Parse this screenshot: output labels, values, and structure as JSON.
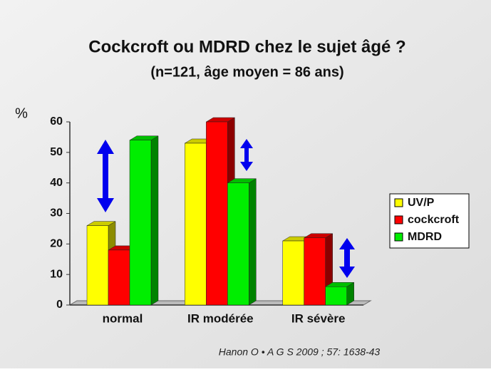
{
  "chart_data": {
    "type": "bar3d",
    "title": "Cockcroft ou MDRD chez le sujet âgé ?",
    "subtitle": "(n=121, âge moyen = 86 ans)",
    "y_label": "%",
    "source": "Hanon O • A G S  2009 ; 57: 1638-43",
    "categories": [
      "normal",
      "IR modérée",
      "IR sévère"
    ],
    "series": [
      {
        "name": "UV/P",
        "color": "#ffff00",
        "values": [
          26,
          53,
          21
        ]
      },
      {
        "name": "cockcroft",
        "color": "#ff0000",
        "values": [
          18,
          60,
          22
        ]
      },
      {
        "name": "MDRD",
        "color": "#00ee00",
        "values": [
          54,
          40,
          6
        ]
      }
    ],
    "ylim": [
      0,
      60
    ],
    "yticks": [
      0,
      10,
      20,
      30,
      40,
      50,
      60
    ],
    "grid": false,
    "legend": "right"
  }
}
